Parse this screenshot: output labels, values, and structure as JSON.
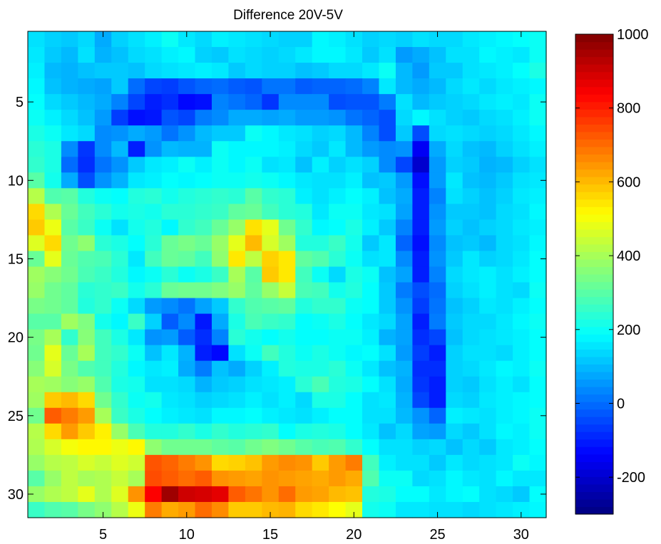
{
  "chart_data": {
    "type": "heatmap",
    "title": "Difference 20V-5V",
    "xlabel": "",
    "ylabel": "",
    "rows": 31,
    "cols": 31,
    "xlim": [
      0.5,
      31.5
    ],
    "ylim": [
      0.5,
      31.5
    ],
    "y_reversed": true,
    "x_ticks": [
      5,
      10,
      15,
      20,
      25,
      30
    ],
    "y_ticks": [
      5,
      10,
      15,
      20,
      25,
      30
    ],
    "colormap": "jet",
    "clim": [
      -300,
      1000
    ],
    "colorbar_ticks": [
      1000,
      800,
      600,
      400,
      200,
      0,
      -200
    ],
    "grid": false,
    "values": [
      [
        150,
        130,
        120,
        140,
        80,
        130,
        150,
        170,
        200,
        160,
        140,
        170,
        160,
        150,
        140,
        130,
        130,
        180,
        170,
        150,
        130,
        140,
        130,
        150,
        140,
        140,
        160,
        170,
        180,
        190,
        200
      ],
      [
        160,
        120,
        100,
        150,
        90,
        110,
        140,
        150,
        170,
        180,
        130,
        120,
        150,
        140,
        130,
        140,
        160,
        180,
        180,
        160,
        120,
        150,
        60,
        80,
        110,
        150,
        150,
        180,
        170,
        160,
        200
      ],
      [
        170,
        100,
        90,
        110,
        120,
        120,
        110,
        140,
        150,
        160,
        170,
        160,
        120,
        140,
        130,
        130,
        110,
        120,
        140,
        140,
        160,
        200,
        100,
        60,
        120,
        120,
        150,
        160,
        170,
        190,
        220
      ],
      [
        180,
        110,
        90,
        80,
        70,
        120,
        0,
        -50,
        -60,
        -30,
        -10,
        0,
        -20,
        -30,
        10,
        10,
        -20,
        -10,
        -10,
        0,
        30,
        160,
        100,
        80,
        100,
        140,
        160,
        140,
        160,
        170,
        180
      ],
      [
        190,
        140,
        120,
        100,
        80,
        30,
        -50,
        -100,
        -80,
        -130,
        -120,
        30,
        10,
        -10,
        -70,
        40,
        40,
        40,
        -40,
        -30,
        -30,
        20,
        150,
        100,
        120,
        130,
        140,
        160,
        170,
        160,
        200
      ],
      [
        200,
        170,
        140,
        110,
        60,
        -60,
        -120,
        -110,
        -30,
        -50,
        20,
        40,
        80,
        80,
        70,
        80,
        60,
        60,
        50,
        10,
        -10,
        -40,
        140,
        180,
        150,
        130,
        120,
        140,
        150,
        170,
        200
      ],
      [
        220,
        200,
        160,
        140,
        40,
        50,
        80,
        60,
        10,
        50,
        100,
        120,
        120,
        200,
        180,
        160,
        150,
        130,
        140,
        100,
        30,
        -40,
        120,
        -40,
        140,
        150,
        140,
        130,
        140,
        160,
        180
      ],
      [
        240,
        220,
        40,
        -70,
        40,
        100,
        -100,
        50,
        100,
        90,
        90,
        200,
        180,
        180,
        180,
        170,
        140,
        120,
        160,
        100,
        60,
        40,
        50,
        -150,
        80,
        140,
        110,
        100,
        130,
        150,
        170
      ],
      [
        250,
        220,
        0,
        -80,
        10,
        50,
        120,
        160,
        170,
        200,
        170,
        200,
        180,
        200,
        150,
        160,
        110,
        170,
        130,
        150,
        130,
        40,
        -50,
        -200,
        60,
        130,
        120,
        90,
        100,
        130,
        150
      ],
      [
        300,
        210,
        80,
        -40,
        50,
        90,
        160,
        170,
        190,
        180,
        190,
        200,
        200,
        210,
        200,
        180,
        160,
        150,
        150,
        170,
        110,
        120,
        60,
        -120,
        60,
        160,
        110,
        100,
        120,
        150,
        160
      ],
      [
        420,
        290,
        300,
        230,
        200,
        190,
        230,
        240,
        210,
        230,
        240,
        250,
        240,
        300,
        250,
        240,
        170,
        150,
        170,
        190,
        170,
        110,
        80,
        -100,
        30,
        150,
        130,
        110,
        130,
        160,
        170
      ],
      [
        560,
        410,
        320,
        270,
        240,
        210,
        220,
        210,
        240,
        240,
        250,
        260,
        310,
        320,
        270,
        240,
        230,
        160,
        200,
        200,
        160,
        150,
        70,
        -100,
        50,
        120,
        120,
        110,
        140,
        150,
        180
      ],
      [
        580,
        490,
        300,
        260,
        200,
        150,
        210,
        230,
        180,
        250,
        270,
        320,
        380,
        550,
        480,
        330,
        250,
        180,
        190,
        220,
        170,
        120,
        30,
        -100,
        60,
        130,
        110,
        130,
        140,
        160,
        170
      ],
      [
        470,
        560,
        330,
        370,
        240,
        220,
        190,
        240,
        320,
        340,
        320,
        380,
        480,
        600,
        460,
        390,
        230,
        230,
        260,
        210,
        120,
        160,
        -10,
        -120,
        40,
        110,
        120,
        100,
        140,
        150,
        180
      ],
      [
        320,
        480,
        320,
        290,
        280,
        240,
        160,
        270,
        320,
        310,
        270,
        370,
        540,
        430,
        570,
        540,
        310,
        290,
        240,
        200,
        150,
        160,
        40,
        -100,
        50,
        120,
        160,
        130,
        140,
        160,
        190
      ],
      [
        390,
        360,
        330,
        280,
        260,
        230,
        180,
        200,
        240,
        200,
        220,
        260,
        400,
        300,
        580,
        540,
        270,
        200,
        140,
        220,
        200,
        110,
        70,
        -100,
        30,
        140,
        160,
        170,
        150,
        170,
        190
      ],
      [
        380,
        330,
        310,
        240,
        250,
        260,
        210,
        240,
        320,
        330,
        330,
        350,
        380,
        310,
        380,
        440,
        280,
        270,
        210,
        230,
        190,
        120,
        20,
        -40,
        0,
        130,
        150,
        170,
        150,
        140,
        200
      ],
      [
        340,
        330,
        310,
        230,
        250,
        200,
        140,
        60,
        40,
        10,
        70,
        120,
        250,
        290,
        300,
        310,
        230,
        250,
        250,
        200,
        190,
        120,
        50,
        -60,
        10,
        110,
        130,
        160,
        150,
        170,
        190
      ],
      [
        300,
        300,
        390,
        350,
        210,
        180,
        260,
        130,
        -20,
        40,
        -110,
        80,
        220,
        280,
        260,
        250,
        190,
        200,
        220,
        190,
        160,
        140,
        70,
        -100,
        20,
        120,
        140,
        140,
        160,
        180,
        200
      ],
      [
        340,
        400,
        250,
        360,
        270,
        220,
        160,
        50,
        60,
        -20,
        -80,
        30,
        240,
        210,
        190,
        210,
        190,
        190,
        200,
        200,
        170,
        90,
        70,
        -80,
        -50,
        110,
        140,
        150,
        160,
        170,
        190
      ],
      [
        330,
        480,
        320,
        400,
        270,
        250,
        200,
        110,
        160,
        90,
        -100,
        -130,
        150,
        200,
        270,
        230,
        200,
        220,
        200,
        180,
        190,
        150,
        60,
        -60,
        -100,
        130,
        150,
        150,
        140,
        170,
        190
      ],
      [
        360,
        460,
        340,
        290,
        270,
        230,
        180,
        160,
        170,
        80,
        20,
        110,
        80,
        130,
        170,
        230,
        220,
        220,
        240,
        200,
        160,
        110,
        90,
        -80,
        -80,
        130,
        140,
        160,
        180,
        170,
        200
      ],
      [
        400,
        390,
        360,
        380,
        290,
        220,
        210,
        150,
        150,
        140,
        90,
        120,
        130,
        150,
        160,
        170,
        240,
        280,
        230,
        220,
        190,
        150,
        80,
        -70,
        -100,
        130,
        120,
        150,
        170,
        150,
        190
      ],
      [
        390,
        580,
        600,
        560,
        330,
        250,
        200,
        210,
        160,
        150,
        130,
        140,
        150,
        170,
        150,
        170,
        140,
        220,
        220,
        190,
        150,
        160,
        90,
        -50,
        -100,
        140,
        130,
        160,
        170,
        180,
        190
      ],
      [
        330,
        720,
        680,
        640,
        400,
        260,
        220,
        190,
        170,
        160,
        150,
        180,
        180,
        190,
        170,
        160,
        150,
        170,
        190,
        190,
        150,
        150,
        100,
        50,
        -10,
        170,
        160,
        150,
        170,
        180,
        200
      ],
      [
        420,
        560,
        640,
        580,
        530,
        380,
        280,
        230,
        230,
        250,
        220,
        250,
        230,
        240,
        250,
        190,
        220,
        230,
        220,
        190,
        160,
        110,
        140,
        70,
        60,
        140,
        120,
        150,
        180,
        170,
        200
      ],
      [
        410,
        460,
        500,
        520,
        520,
        490,
        520,
        370,
        330,
        330,
        330,
        310,
        300,
        330,
        350,
        330,
        300,
        280,
        290,
        250,
        190,
        150,
        150,
        130,
        140,
        110,
        140,
        120,
        160,
        170,
        190
      ],
      [
        380,
        420,
        430,
        460,
        440,
        470,
        450,
        730,
        710,
        680,
        650,
        560,
        570,
        590,
        640,
        660,
        650,
        580,
        640,
        680,
        270,
        170,
        150,
        150,
        120,
        160,
        140,
        150,
        160,
        200,
        180
      ],
      [
        300,
        380,
        430,
        400,
        410,
        440,
        400,
        740,
        720,
        700,
        720,
        650,
        640,
        630,
        650,
        640,
        630,
        620,
        640,
        620,
        290,
        200,
        200,
        140,
        150,
        180,
        160,
        150,
        180,
        160,
        160
      ],
      [
        380,
        410,
        430,
        480,
        410,
        470,
        650,
        840,
        960,
        900,
        890,
        870,
        720,
        690,
        650,
        700,
        640,
        630,
        600,
        590,
        230,
        220,
        190,
        190,
        160,
        180,
        190,
        150,
        140,
        120,
        190
      ],
      [
        260,
        290,
        300,
        340,
        370,
        420,
        490,
        680,
        620,
        640,
        700,
        660,
        580,
        580,
        600,
        610,
        560,
        540,
        510,
        480,
        210,
        200,
        160,
        160,
        150,
        150,
        140,
        150,
        160,
        170,
        180
      ]
    ]
  }
}
